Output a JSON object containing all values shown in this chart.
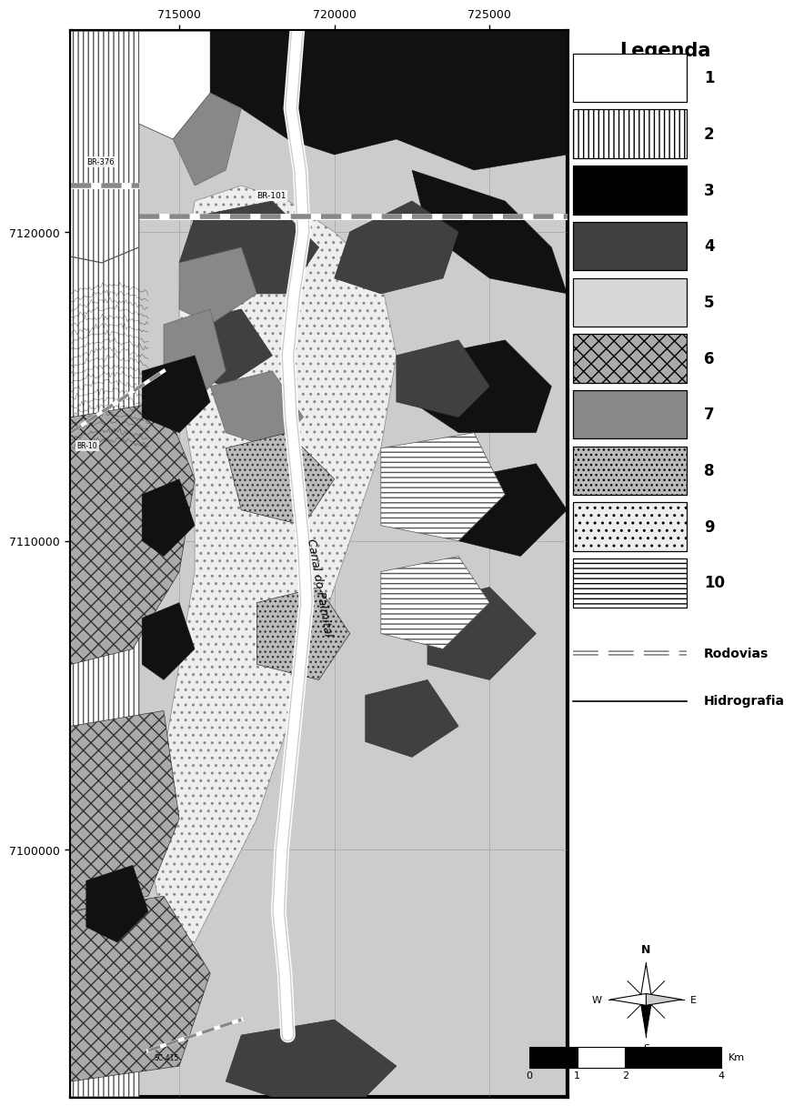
{
  "title": "",
  "map_xlim": [
    711500,
    727500
  ],
  "map_ylim": [
    7092000,
    7126500
  ],
  "x_ticks": [
    715000,
    720000,
    725000
  ],
  "y_ticks": [
    7100000,
    7110000,
    7120000
  ],
  "legend_title": "Legenda",
  "background_color": "#ffffff",
  "map_bg_color": "#cccccc",
  "border_color": "#000000",
  "grid_color": "#888888",
  "font_family": "DejaVu Sans",
  "scale_bar_label": "Km",
  "canvas_figsize": [
    8.27,
    12.6
  ],
  "canvas_dpi": 100,
  "map_axes": [
    0.07,
    0.04,
    0.66,
    0.93
  ],
  "legend_axes": [
    0.73,
    0.38,
    0.26,
    0.59
  ],
  "compass_axes": [
    0.77,
    0.06,
    0.13,
    0.13
  ],
  "scale_axes": [
    0.68,
    0.05,
    0.28,
    0.045
  ],
  "legend_items": [
    {
      "num": "1",
      "style": "hatch",
      "facecolor": "#ffffff",
      "edgecolor": "#333333",
      "hatch": "vvv"
    },
    {
      "num": "2",
      "style": "hatch",
      "facecolor": "#ffffff",
      "edgecolor": "#555555",
      "hatch": "|||"
    },
    {
      "num": "3",
      "style": "solid",
      "facecolor": "#000000",
      "edgecolor": "#000000"
    },
    {
      "num": "4",
      "style": "solid",
      "facecolor": "#404040",
      "edgecolor": "#404040"
    },
    {
      "num": "5",
      "style": "solid",
      "facecolor": "#d8d8d8",
      "edgecolor": "#999999"
    },
    {
      "num": "6",
      "style": "hatch",
      "facecolor": "#aaaaaa",
      "edgecolor": "#333333",
      "hatch": "xx"
    },
    {
      "num": "7",
      "style": "solid",
      "facecolor": "#888888",
      "edgecolor": "#666666"
    },
    {
      "num": "8",
      "style": "hatch",
      "facecolor": "#bbbbbb",
      "edgecolor": "#444444",
      "hatch": "..."
    },
    {
      "num": "9",
      "style": "hatch",
      "facecolor": "#eeeeee",
      "edgecolor": "#666666",
      "hatch": ".."
    },
    {
      "num": "10",
      "style": "hatch",
      "facecolor": "#ffffff",
      "edgecolor": "#555555",
      "hatch": "---"
    }
  ],
  "road_label_color": "#000000",
  "canal_label": "Canal do Palmital",
  "road_labels": [
    "BR-376",
    "BR-101",
    "BR-10",
    "SC-415"
  ]
}
